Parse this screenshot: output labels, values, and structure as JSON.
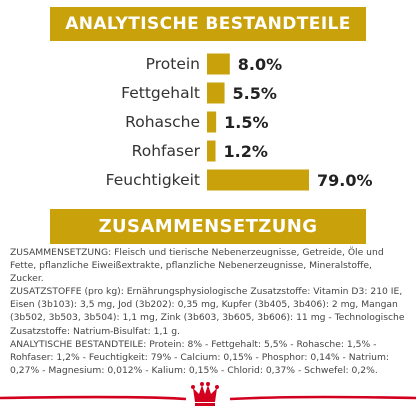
{
  "banners": {
    "analysis": "ANALYTISCHE BESTANDTEILE",
    "composition": "ZUSAMMENSETZUNG"
  },
  "colors": {
    "gold": "#c9a10a",
    "brand_red": "#d2001e"
  },
  "chart_data": {
    "type": "bar",
    "orientation": "horizontal",
    "categories": [
      "Protein",
      "Fettgehalt",
      "Rohasche",
      "Rohfaser",
      "Feuchtigkeit"
    ],
    "values": [
      8.0,
      5.5,
      1.5,
      1.2,
      79.0
    ],
    "value_labels": [
      "8.0%",
      "5.5%",
      "1.5%",
      "1.2%",
      "79.0%"
    ],
    "unit": "%",
    "xlim": [
      0,
      79
    ],
    "grid": false,
    "legend": "none"
  },
  "composition": {
    "paragraphs": [
      "ZUSAMMENSETZUNG: Fleisch und tierische Nebenerzeugnisse, Getreide, Öle und Fette, pflanzliche Eiweißextrakte, pflanzliche Nebenerzeugnisse, Mineralstoffe, Zucker.",
      "ZUSATZSTOFFE (pro kg): Ernährungsphysiologische Zusatzstoffe: Vitamin D3: 210 IE, Eisen (3b103): 3,5 mg, Jod (3b202): 0,35 mg, Kupfer (3b405, 3b406): 2 mg, Mangan (3b502, 3b503, 3b504): 1,1 mg, Zink (3b603, 3b605, 3b606): 11 mg - Technologische Zusatzstoffe: Natrium-Bisulfat: 1,1 g.",
      "ANALYTISCHE BESTANDTEILE: Protein: 8% - Fettgehalt: 5,5% - Rohasche: 1,5% - Rohfaser: 1,2% - Feuchtigkeit: 79% - Calcium: 0,15% - Phosphor: 0,14% - Natrium: 0,27% - Magnesium: 0,012% - Kalium: 0,15% - Chlorid: 0,37% - Schwefel: 0,2%."
    ]
  },
  "footer": {
    "logo_icon": "crown-icon"
  }
}
